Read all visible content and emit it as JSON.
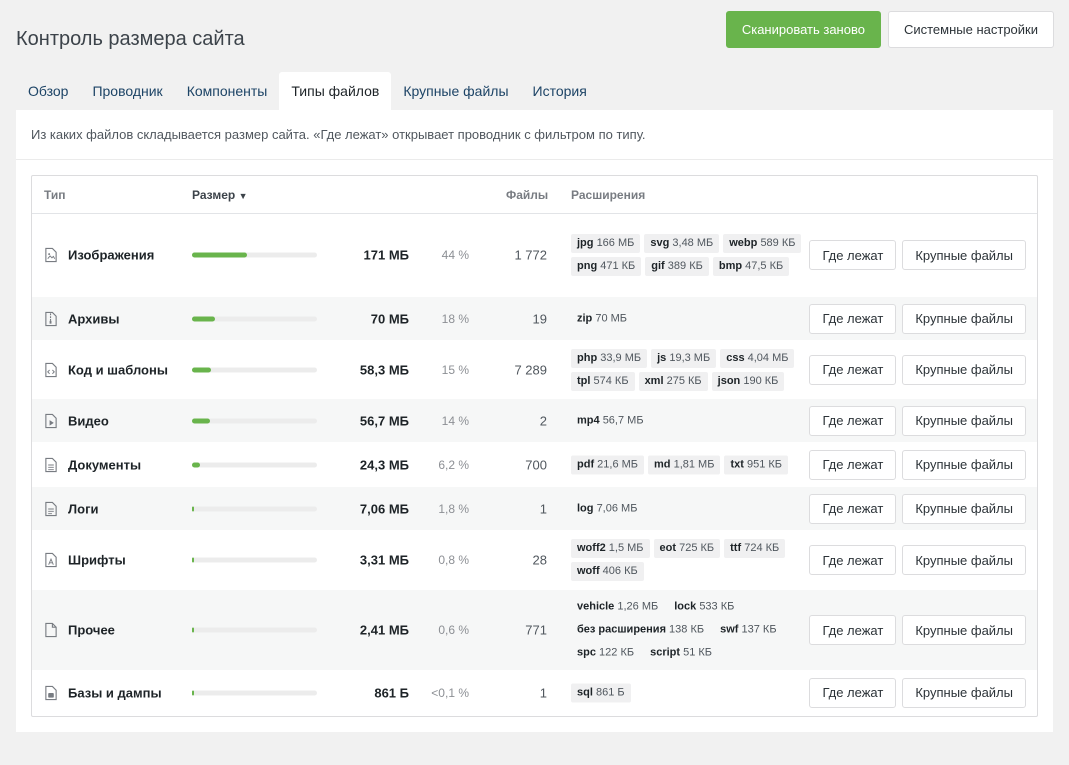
{
  "page_title": "Контроль размера сайта",
  "actions": {
    "rescan": "Сканировать заново",
    "settings": "Системные настройки"
  },
  "tabs": [
    {
      "label": "Обзор"
    },
    {
      "label": "Проводник"
    },
    {
      "label": "Компоненты"
    },
    {
      "label": "Типы файлов"
    },
    {
      "label": "Крупные файлы"
    },
    {
      "label": "История"
    }
  ],
  "description": "Из каких файлов складывается размер сайта. «Где лежат» открывает проводник с фильтром по типу.",
  "table": {
    "headers": {
      "type": "Тип",
      "size": "Размер",
      "sort_arrow": "▼",
      "files": "Файлы",
      "extensions": "Расширения"
    },
    "row_buttons": {
      "where": "Где лежат",
      "large": "Крупные файлы"
    },
    "rows": [
      {
        "icon": "image-file-icon",
        "name": "Изображения",
        "size": "171 МБ",
        "pct": "44 %",
        "share": 0.44,
        "files": "1 772",
        "ext": [
          {
            "n": "jpg",
            "s": "166 МБ"
          },
          {
            "n": "svg",
            "s": "3,48 МБ"
          },
          {
            "n": "webp",
            "s": "589 КБ"
          },
          {
            "n": "png",
            "s": "471 КБ"
          },
          {
            "n": "gif",
            "s": "389 КБ"
          },
          {
            "n": "bmp",
            "s": "47,5 КБ"
          }
        ]
      },
      {
        "icon": "archive-file-icon",
        "name": "Архивы",
        "size": "70 МБ",
        "pct": "18 %",
        "share": 0.18,
        "files": "19",
        "ext": [
          {
            "n": "zip",
            "s": "70 МБ"
          }
        ]
      },
      {
        "icon": "code-file-icon",
        "name": "Код и шаблоны",
        "size": "58,3 МБ",
        "pct": "15 %",
        "share": 0.15,
        "files": "7 289",
        "ext": [
          {
            "n": "php",
            "s": "33,9 МБ"
          },
          {
            "n": "js",
            "s": "19,3 МБ"
          },
          {
            "n": "css",
            "s": "4,04 МБ"
          },
          {
            "n": "tpl",
            "s": "574 КБ"
          },
          {
            "n": "xml",
            "s": "275 КБ"
          },
          {
            "n": "json",
            "s": "190 КБ"
          }
        ]
      },
      {
        "icon": "video-file-icon",
        "name": "Видео",
        "size": "56,7 МБ",
        "pct": "14 %",
        "share": 0.14,
        "files": "2",
        "ext": [
          {
            "n": "mp4",
            "s": "56,7 МБ"
          }
        ]
      },
      {
        "icon": "document-file-icon",
        "name": "Документы",
        "size": "24,3 МБ",
        "pct": "6,2 %",
        "share": 0.062,
        "files": "700",
        "ext": [
          {
            "n": "pdf",
            "s": "21,6 МБ"
          },
          {
            "n": "md",
            "s": "1,81 МБ"
          },
          {
            "n": "txt",
            "s": "951 КБ"
          }
        ]
      },
      {
        "icon": "log-file-icon",
        "name": "Логи",
        "size": "7,06 МБ",
        "pct": "1,8 %",
        "share": 0.018,
        "files": "1",
        "ext": [
          {
            "n": "log",
            "s": "7,06 МБ"
          }
        ]
      },
      {
        "icon": "font-file-icon",
        "name": "Шрифты",
        "size": "3,31 МБ",
        "pct": "0,8 %",
        "share": 0.008,
        "files": "28",
        "ext": [
          {
            "n": "woff2",
            "s": "1,5 МБ"
          },
          {
            "n": "eot",
            "s": "725 КБ"
          },
          {
            "n": "ttf",
            "s": "724 КБ"
          },
          {
            "n": "woff",
            "s": "406 КБ"
          }
        ]
      },
      {
        "icon": "generic-file-icon",
        "name": "Прочее",
        "size": "2,41 МБ",
        "pct": "0,6 %",
        "share": 0.006,
        "files": "771",
        "ext": [
          {
            "n": "vehicle",
            "s": "1,26 МБ"
          },
          {
            "n": "lock",
            "s": "533 КБ"
          },
          {
            "n": "без расширения",
            "s": "138 КБ"
          },
          {
            "n": "swf",
            "s": "137 КБ"
          },
          {
            "n": "spc",
            "s": "122 КБ"
          },
          {
            "n": "script",
            "s": "51 КБ"
          }
        ]
      },
      {
        "icon": "database-file-icon",
        "name": "Базы и дампы",
        "size": "861 Б",
        "pct": "<0,1 %",
        "share": 0.001,
        "files": "1",
        "ext": [
          {
            "n": "sql",
            "s": "861 Б"
          }
        ]
      }
    ]
  },
  "colors": {
    "accent": "#69b44c",
    "link": "#1d4466"
  }
}
